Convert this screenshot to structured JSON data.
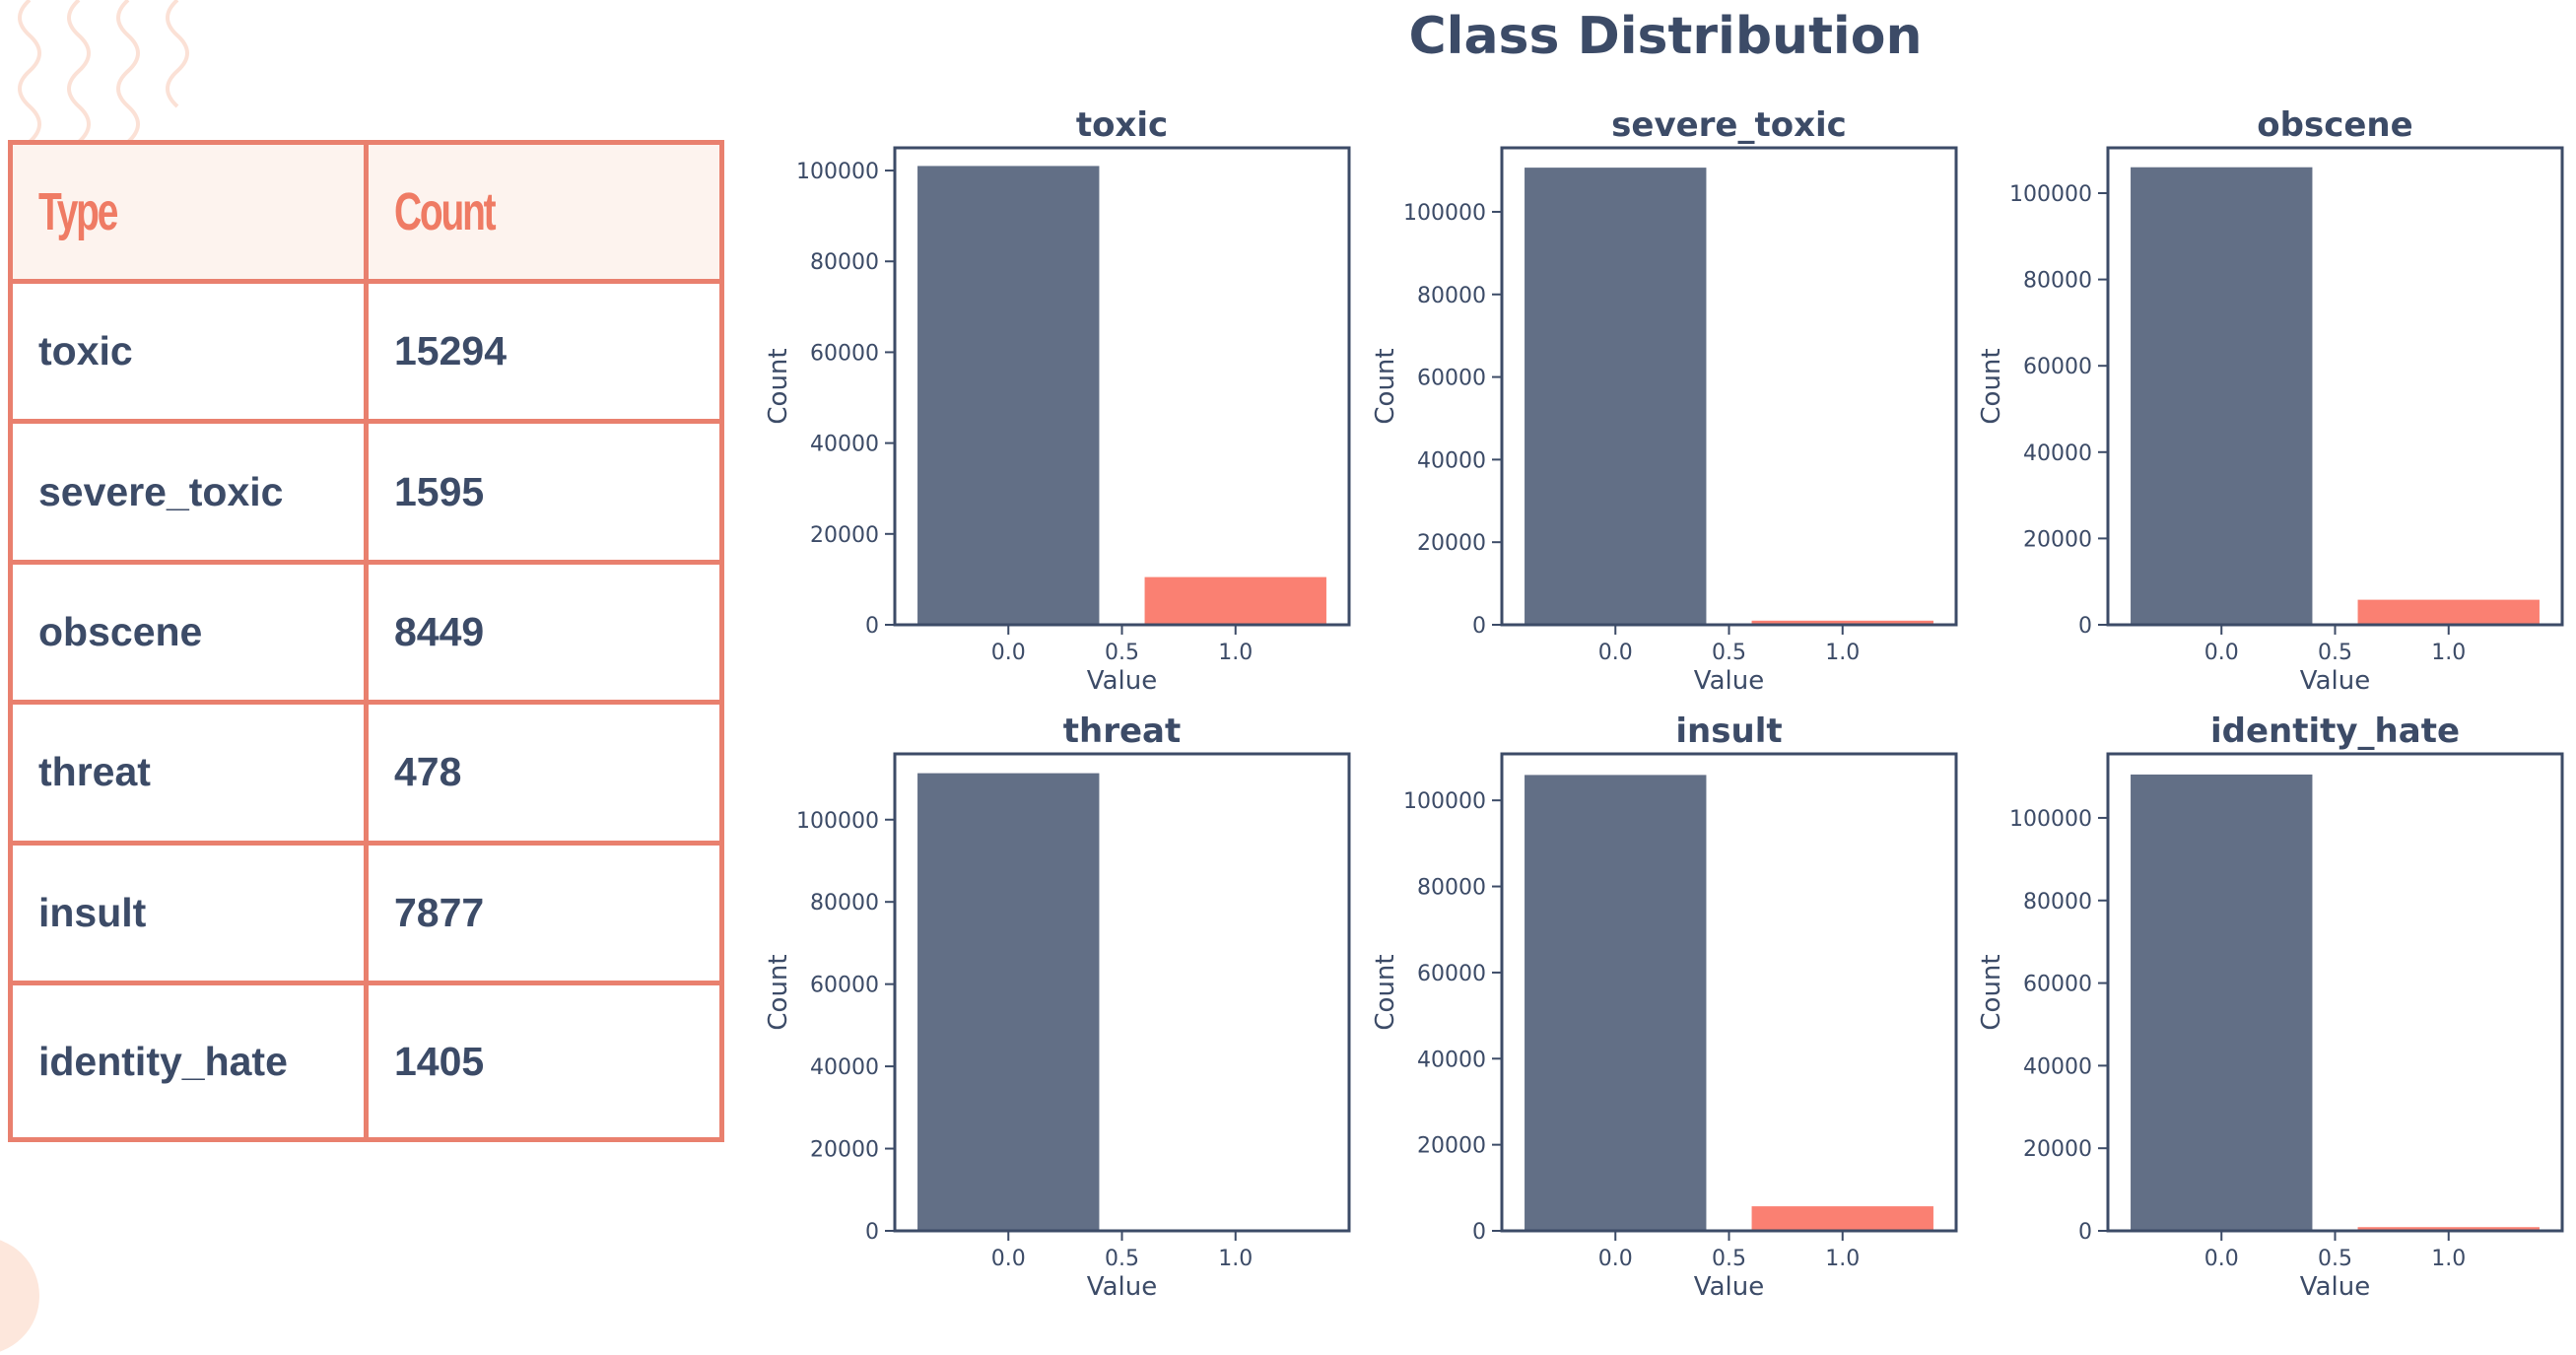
{
  "title": "Class Distribution",
  "table": {
    "headers": [
      "Type",
      "Count"
    ],
    "rows": [
      {
        "type": "toxic",
        "count": "15294"
      },
      {
        "type": "severe_toxic",
        "count": "1595"
      },
      {
        "type": "obscene",
        "count": "8449"
      },
      {
        "type": "threat",
        "count": "478"
      },
      {
        "type": "insult",
        "count": "7877"
      },
      {
        "type": "identity_hate",
        "count": "1405"
      }
    ]
  },
  "colors": {
    "bar_zero": "#626f86",
    "bar_one": "#fa8072",
    "text": "#3c4b67",
    "axis": "#3c4b67"
  },
  "chart_data": [
    {
      "type": "bar",
      "title": "toxic",
      "xlabel": "Value",
      "ylabel": "Count",
      "x": [
        0.0,
        1.0
      ],
      "values": [
        101000,
        10500
      ],
      "xlim": [
        -0.5,
        1.5
      ],
      "ylim": [
        0,
        105000
      ],
      "yticks": [
        0,
        20000,
        40000,
        60000,
        80000,
        100000
      ],
      "xticks": [
        "0.0",
        "0.5",
        "1.0"
      ]
    },
    {
      "type": "bar",
      "title": "severe_toxic",
      "xlabel": "Value",
      "ylabel": "Count",
      "x": [
        0.0,
        1.0
      ],
      "values": [
        110700,
        1000
      ],
      "xlim": [
        -0.5,
        1.5
      ],
      "ylim": [
        0,
        115500
      ],
      "yticks": [
        0,
        20000,
        40000,
        60000,
        80000,
        100000
      ],
      "xticks": [
        "0.0",
        "0.5",
        "1.0"
      ]
    },
    {
      "type": "bar",
      "title": "obscene",
      "xlabel": "Value",
      "ylabel": "Count",
      "x": [
        0.0,
        1.0
      ],
      "values": [
        106000,
        5800
      ],
      "xlim": [
        -0.5,
        1.5
      ],
      "ylim": [
        0,
        110500
      ],
      "yticks": [
        0,
        20000,
        40000,
        60000,
        80000,
        100000
      ],
      "xticks": [
        "0.0",
        "0.5",
        "1.0"
      ]
    },
    {
      "type": "bar",
      "title": "threat",
      "xlabel": "Value",
      "ylabel": "Count",
      "x": [
        0.0,
        1.0
      ],
      "values": [
        111300,
        300
      ],
      "xlim": [
        -0.5,
        1.5
      ],
      "ylim": [
        0,
        116000
      ],
      "yticks": [
        0,
        20000,
        40000,
        60000,
        80000,
        100000
      ],
      "xticks": [
        "0.0",
        "0.5",
        "1.0"
      ]
    },
    {
      "type": "bar",
      "title": "insult",
      "xlabel": "Value",
      "ylabel": "Count",
      "x": [
        0.0,
        1.0
      ],
      "values": [
        105900,
        5700
      ],
      "xlim": [
        -0.5,
        1.5
      ],
      "ylim": [
        0,
        110800
      ],
      "yticks": [
        0,
        20000,
        40000,
        60000,
        80000,
        100000
      ],
      "xticks": [
        "0.0",
        "0.5",
        "1.0"
      ]
    },
    {
      "type": "bar",
      "title": "identity_hate",
      "xlabel": "Value",
      "ylabel": "Count",
      "x": [
        0.0,
        1.0
      ],
      "values": [
        110500,
        900
      ],
      "xlim": [
        -0.5,
        1.5
      ],
      "ylim": [
        0,
        115500
      ],
      "yticks": [
        0,
        20000,
        40000,
        60000,
        80000,
        100000
      ],
      "xticks": [
        "0.0",
        "0.5",
        "1.0"
      ]
    }
  ]
}
